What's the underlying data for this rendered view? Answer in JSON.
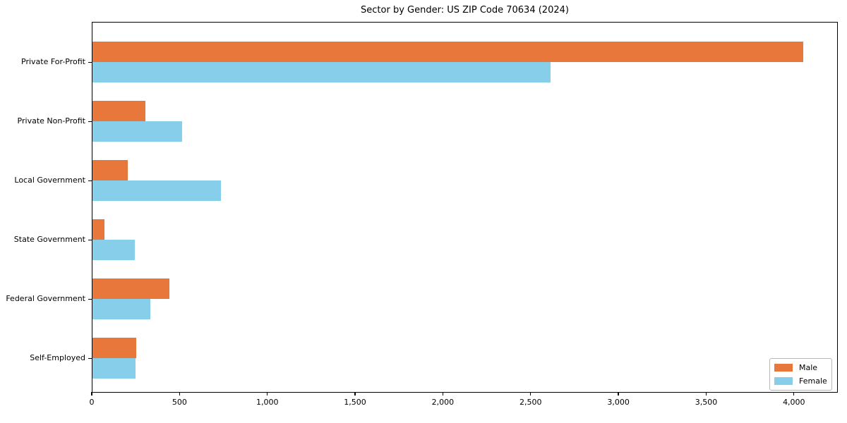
{
  "title": "Sector by Gender: US ZIP Code 70634 (2024)",
  "colors": {
    "male": "#E8773C",
    "female": "#87CEEB",
    "axis": "#000000",
    "legend_border": "#B7B7B7",
    "background": "#FFFFFF"
  },
  "chart_data": {
    "type": "bar",
    "orientation": "horizontal",
    "title": "Sector by Gender: US ZIP Code 70634 (2024)",
    "xlabel": "",
    "ylabel": "",
    "categories": [
      "Private For-Profit",
      "Private Non-Profit",
      "Local Government",
      "State Government",
      "Federal Government",
      "Self-Employed"
    ],
    "series": [
      {
        "name": "Male",
        "color": "#E8773C",
        "values": [
          4050,
          300,
          200,
          70,
          440,
          250
        ]
      },
      {
        "name": "Female",
        "color": "#87CEEB",
        "values": [
          2610,
          510,
          730,
          240,
          330,
          245
        ]
      }
    ],
    "xlim": [
      0,
      4250
    ],
    "xticks": [
      0,
      500,
      1000,
      1500,
      2000,
      2500,
      3000,
      3500,
      4000
    ],
    "xtick_labels": [
      "0",
      "500",
      "1,000",
      "1,500",
      "2,000",
      "2,500",
      "3,000",
      "3,500",
      "4,000"
    ],
    "grid": false,
    "legend": {
      "position": "lower right",
      "entries": [
        "Male",
        "Female"
      ]
    }
  }
}
